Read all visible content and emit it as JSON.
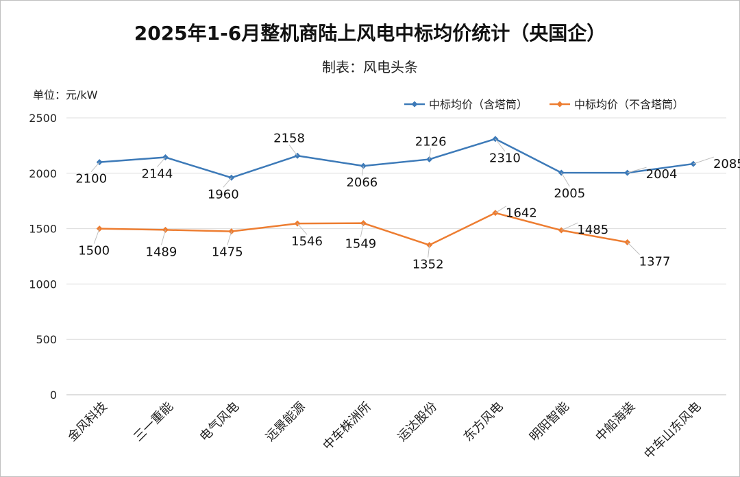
{
  "chart_data": {
    "type": "line",
    "title": "2025年1-6月整机商陆上风电中标均价统计（央国企）",
    "subtitle": "制表：风电头条",
    "unit_label": "单位：元/kW",
    "categories": [
      "金风科技",
      "三一重能",
      "电气风电",
      "远景能源",
      "中车株洲所",
      "运达股份",
      "东方风电",
      "明阳智能",
      "中船海装",
      "中车山东风电"
    ],
    "series": [
      {
        "name": "中标均价（含塔筒）",
        "color": "#3d7ab8",
        "values": [
          2100,
          2144,
          1960,
          2158,
          2066,
          2126,
          2310,
          2005,
          2004,
          2085
        ]
      },
      {
        "name": "中标均价（不含塔筒）",
        "color": "#ed7d31",
        "values": [
          1500,
          1489,
          1475,
          1546,
          1549,
          1352,
          1642,
          1485,
          1377,
          null
        ]
      }
    ],
    "ylim": [
      0,
      2500
    ],
    "yticks": [
      0,
      500,
      1000,
      1500,
      2000,
      2500
    ],
    "grid": true,
    "legend_position": "top-right"
  }
}
